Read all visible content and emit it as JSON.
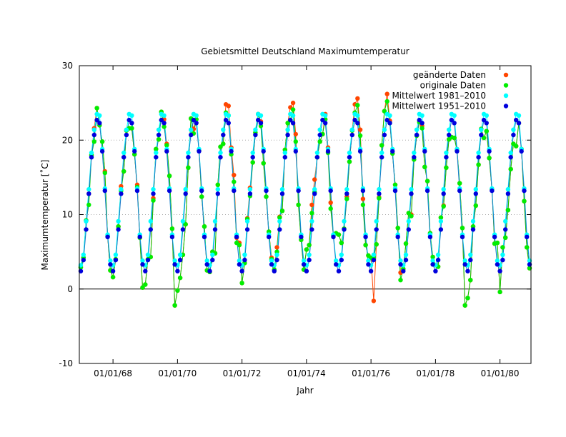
{
  "chart_data": {
    "type": "line",
    "title": "Gebietsmittel Deutschland Maximumtemperatur",
    "xlabel": "Jahr",
    "ylabel": "Maximumtemperatur [˚C]",
    "ylim": [
      -10,
      30
    ],
    "yticks": [
      -10,
      0,
      10,
      20,
      30
    ],
    "xlim": [
      "1967-01",
      "1980-12"
    ],
    "xticks": [
      {
        "date": "1968-01",
        "label": "01/01/68"
      },
      {
        "date": "1970-01",
        "label": "01/01/70"
      },
      {
        "date": "1972-01",
        "label": "01/01/72"
      },
      {
        "date": "1974-01",
        "label": "01/01/74"
      },
      {
        "date": "1976-01",
        "label": "01/01/76"
      },
      {
        "date": "1978-01",
        "label": "01/01/78"
      },
      {
        "date": "1980-01",
        "label": "01/01/80"
      }
    ],
    "grid": "horizontal dotted",
    "zero_line": true,
    "legend_position": "top-right",
    "monthly_x": {
      "start": "1967-01",
      "step": "1 month"
    },
    "series": [
      {
        "name": "geänderte Daten",
        "color": "#ff4500",
        "marker": "dot",
        "values": [
          [
            2.9,
            4.2,
            9.2,
            12.8,
            18.0,
            21.6,
            24.3,
            22.0,
            19.8,
            15.8,
            7.1,
            2.5
          ],
          [
            1.6,
            4.0,
            8.4,
            13.8,
            15.8,
            21.3,
            21.6,
            21.6,
            18.1,
            14.0,
            6.9,
            0.2
          ],
          [
            0.6,
            4.0,
            4.3,
            12.2,
            18.8,
            20.1,
            23.8,
            22.8,
            19.5,
            15.2,
            8.1,
            -2.2
          ],
          [
            -0.2,
            1.5,
            4.6,
            8.7,
            16.3,
            22.9,
            21.5,
            22.8,
            18.6,
            12.4,
            8.4,
            2.5
          ],
          [
            2.3,
            5.0,
            4.8,
            14.0,
            19.1,
            19.5,
            24.8,
            24.6,
            19.0,
            15.3,
            6.9,
            6.2
          ],
          [
            0.8,
            3.5,
            9.5,
            13.6,
            17.0,
            21.0,
            23.5,
            22.5,
            16.9,
            12.4,
            7.7,
            4.2
          ],
          [
            2.6,
            5.6,
            9.7,
            10.5,
            18.7,
            22.3,
            24.4,
            25.0,
            20.8,
            11.3,
            6.6,
            2.6
          ],
          [
            5.3,
            5.9,
            11.3,
            14.7,
            17.7,
            19.8,
            20.8,
            23.5,
            19.0,
            11.6,
            7.2,
            7.5
          ],
          [
            7.3,
            6.2,
            8.1,
            12.4,
            17.1,
            21.3,
            24.8,
            25.6,
            21.4,
            12.1,
            5.9,
            4.5
          ],
          [
            4.2,
            -1.6,
            6.0,
            12.3,
            19.3,
            23.9,
            26.2,
            22.6,
            18.2,
            14.0,
            8.2,
            2.2
          ],
          [
            2.7,
            6.1,
            10.2,
            10.0,
            17.4,
            20.6,
            22.6,
            21.9,
            16.4,
            14.5,
            7.5,
            4.3
          ],
          [
            3.2,
            3.0,
            9.6,
            11.2,
            16.3,
            20.1,
            20.4,
            20.3,
            18.8,
            14.2,
            8.2,
            -2.2
          ],
          [
            -1.2,
            1.2,
            8.4,
            11.2,
            16.7,
            21.5,
            20.3,
            21.2,
            17.6,
            13.4,
            6.1,
            6.2
          ],
          [
            -0.4,
            5.6,
            6.9,
            10.6,
            16.1,
            19.5,
            19.2,
            22.3,
            18.8,
            11.8,
            5.6,
            2.8
          ]
        ]
      },
      {
        "name": "originale Daten",
        "color": "#00ee00",
        "marker": "dot",
        "values": [
          [
            2.9,
            4.2,
            9.2,
            11.3,
            18.0,
            19.8,
            24.3,
            22.0,
            19.8,
            15.6,
            7.1,
            2.5
          ],
          [
            1.6,
            4.0,
            8.4,
            13.2,
            15.8,
            21.3,
            21.6,
            21.6,
            18.1,
            13.7,
            6.9,
            0.2
          ],
          [
            0.6,
            4.0,
            4.3,
            11.9,
            18.8,
            20.1,
            23.8,
            21.8,
            19.3,
            15.2,
            8.1,
            -2.2
          ],
          [
            -0.2,
            1.5,
            4.6,
            8.7,
            16.3,
            22.9,
            20.9,
            22.8,
            18.6,
            12.4,
            8.4,
            2.5
          ],
          [
            2.3,
            5.0,
            4.8,
            14.0,
            19.1,
            19.5,
            23.7,
            23.3,
            18.1,
            14.4,
            6.2,
            5.9
          ],
          [
            0.8,
            3.5,
            9.4,
            12.5,
            17.0,
            21.0,
            23.5,
            21.9,
            16.9,
            12.4,
            7.7,
            4.0
          ],
          [
            2.6,
            5.0,
            9.6,
            10.5,
            18.7,
            22.3,
            22.7,
            24.1,
            19.8,
            11.3,
            6.6,
            2.6
          ],
          [
            5.3,
            5.9,
            10.2,
            13.0,
            17.7,
            19.8,
            20.8,
            22.8,
            18.3,
            10.8,
            7.2,
            7.5
          ],
          [
            7.3,
            6.2,
            8.1,
            12.1,
            17.1,
            21.3,
            23.7,
            24.7,
            20.6,
            11.3,
            5.9,
            4.5
          ],
          [
            4.2,
            4.2,
            6.0,
            12.2,
            19.3,
            23.9,
            25.2,
            22.3,
            18.2,
            14.0,
            8.2,
            1.2
          ],
          [
            2.7,
            6.1,
            10.2,
            9.8,
            17.4,
            20.6,
            22.4,
            21.6,
            16.4,
            14.5,
            7.5,
            4.3
          ],
          [
            3.2,
            3.0,
            9.6,
            11.1,
            16.3,
            20.1,
            20.4,
            20.3,
            18.6,
            14.2,
            8.2,
            -2.2
          ],
          [
            -1.2,
            1.2,
            8.4,
            11.2,
            16.7,
            21.5,
            20.3,
            21.2,
            17.6,
            13.4,
            6.1,
            6.2
          ],
          [
            -0.4,
            5.6,
            6.9,
            10.6,
            16.1,
            19.5,
            19.2,
            22.3,
            18.8,
            11.8,
            5.6,
            2.8
          ]
        ]
      },
      {
        "name": "Mittelwert 1981–2010",
        "color": "#00ffff",
        "marker": "dot",
        "values": [
          3.2,
          4.6,
          9.1,
          13.4,
          18.3,
          21.4,
          23.5,
          23.3,
          18.8,
          13.5,
          7.3,
          3.8
        ]
      },
      {
        "name": "Mittelwert 1951–2010",
        "color": "#0000dd",
        "marker": "dot",
        "values": [
          2.4,
          3.9,
          8.0,
          12.8,
          17.7,
          20.7,
          22.7,
          22.3,
          18.5,
          13.2,
          7.0,
          3.3
        ]
      }
    ]
  }
}
